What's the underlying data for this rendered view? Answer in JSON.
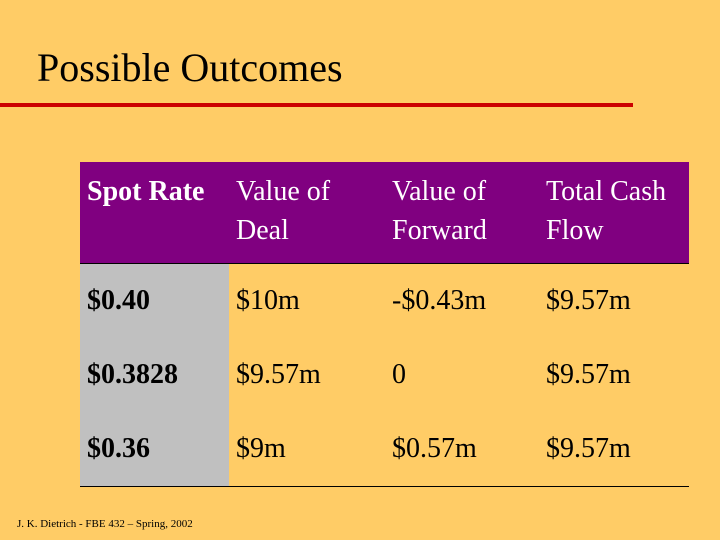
{
  "title": "Possible Outcomes",
  "table": {
    "headers": [
      {
        "line1": "Spot Rate",
        "line2": ""
      },
      {
        "line1": "Value of",
        "line2": "Deal"
      },
      {
        "line1": "Value of",
        "line2": "Forward"
      },
      {
        "line1": "Total Cash",
        "line2": "Flow"
      }
    ],
    "rows": [
      [
        "$0.40",
        "$10m",
        "-$0.43m",
        "$9.57m"
      ],
      [
        "$0.3828",
        "$9.57m",
        "0",
        "$9.57m"
      ],
      [
        "$0.36",
        "$9m",
        "$0.57m",
        "$9.57m"
      ]
    ]
  },
  "footer": "J. K. Dietrich - FBE 432 – Spring, 2002",
  "colors": {
    "background": "#FFCC66",
    "title_rule": "#CC0000",
    "header_fill": "#800080",
    "first_column_fill": "#C0C0C0"
  }
}
